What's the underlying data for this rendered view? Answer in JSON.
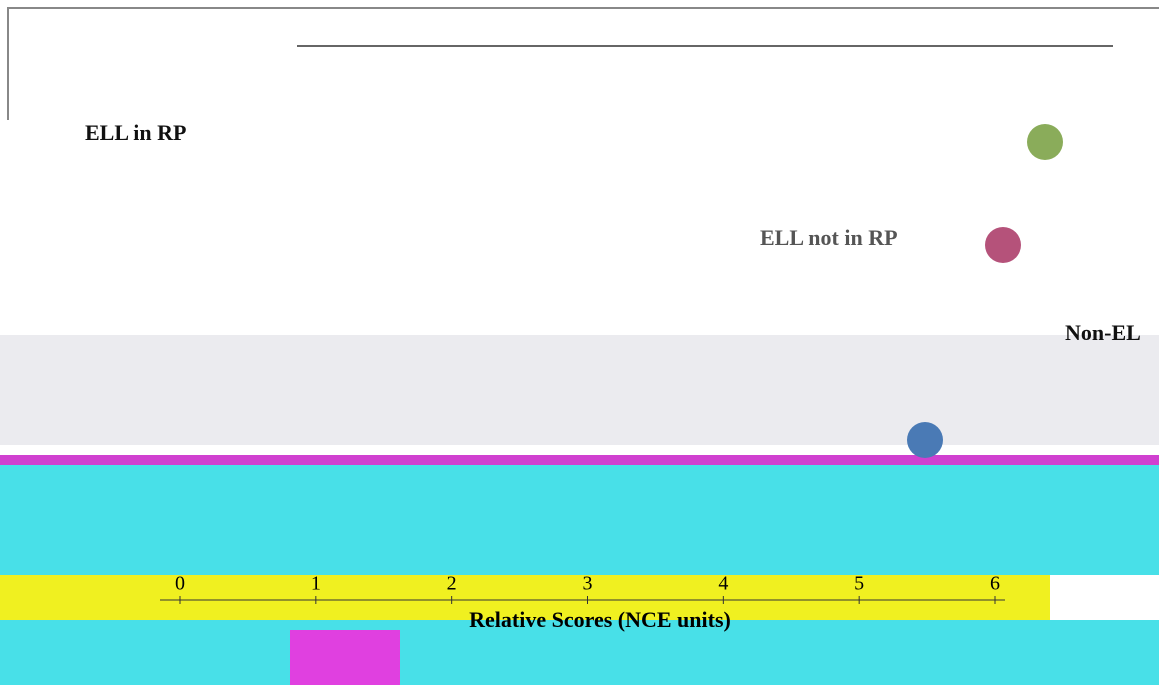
{
  "chart_data": {
    "type": "dotplot",
    "legend": [
      {
        "name": "ELL in RP",
        "color": "#8aac5a"
      },
      {
        "name": "ELL not in RP",
        "color": "#b5527a"
      },
      {
        "name": "Non-EL",
        "color": "#4a7ab5"
      }
    ],
    "xlim": [
      0,
      6
    ],
    "xticks": [
      0,
      1,
      2,
      3,
      4,
      5,
      6
    ],
    "xlabel": "Relative Scores (NCE units)"
  }
}
